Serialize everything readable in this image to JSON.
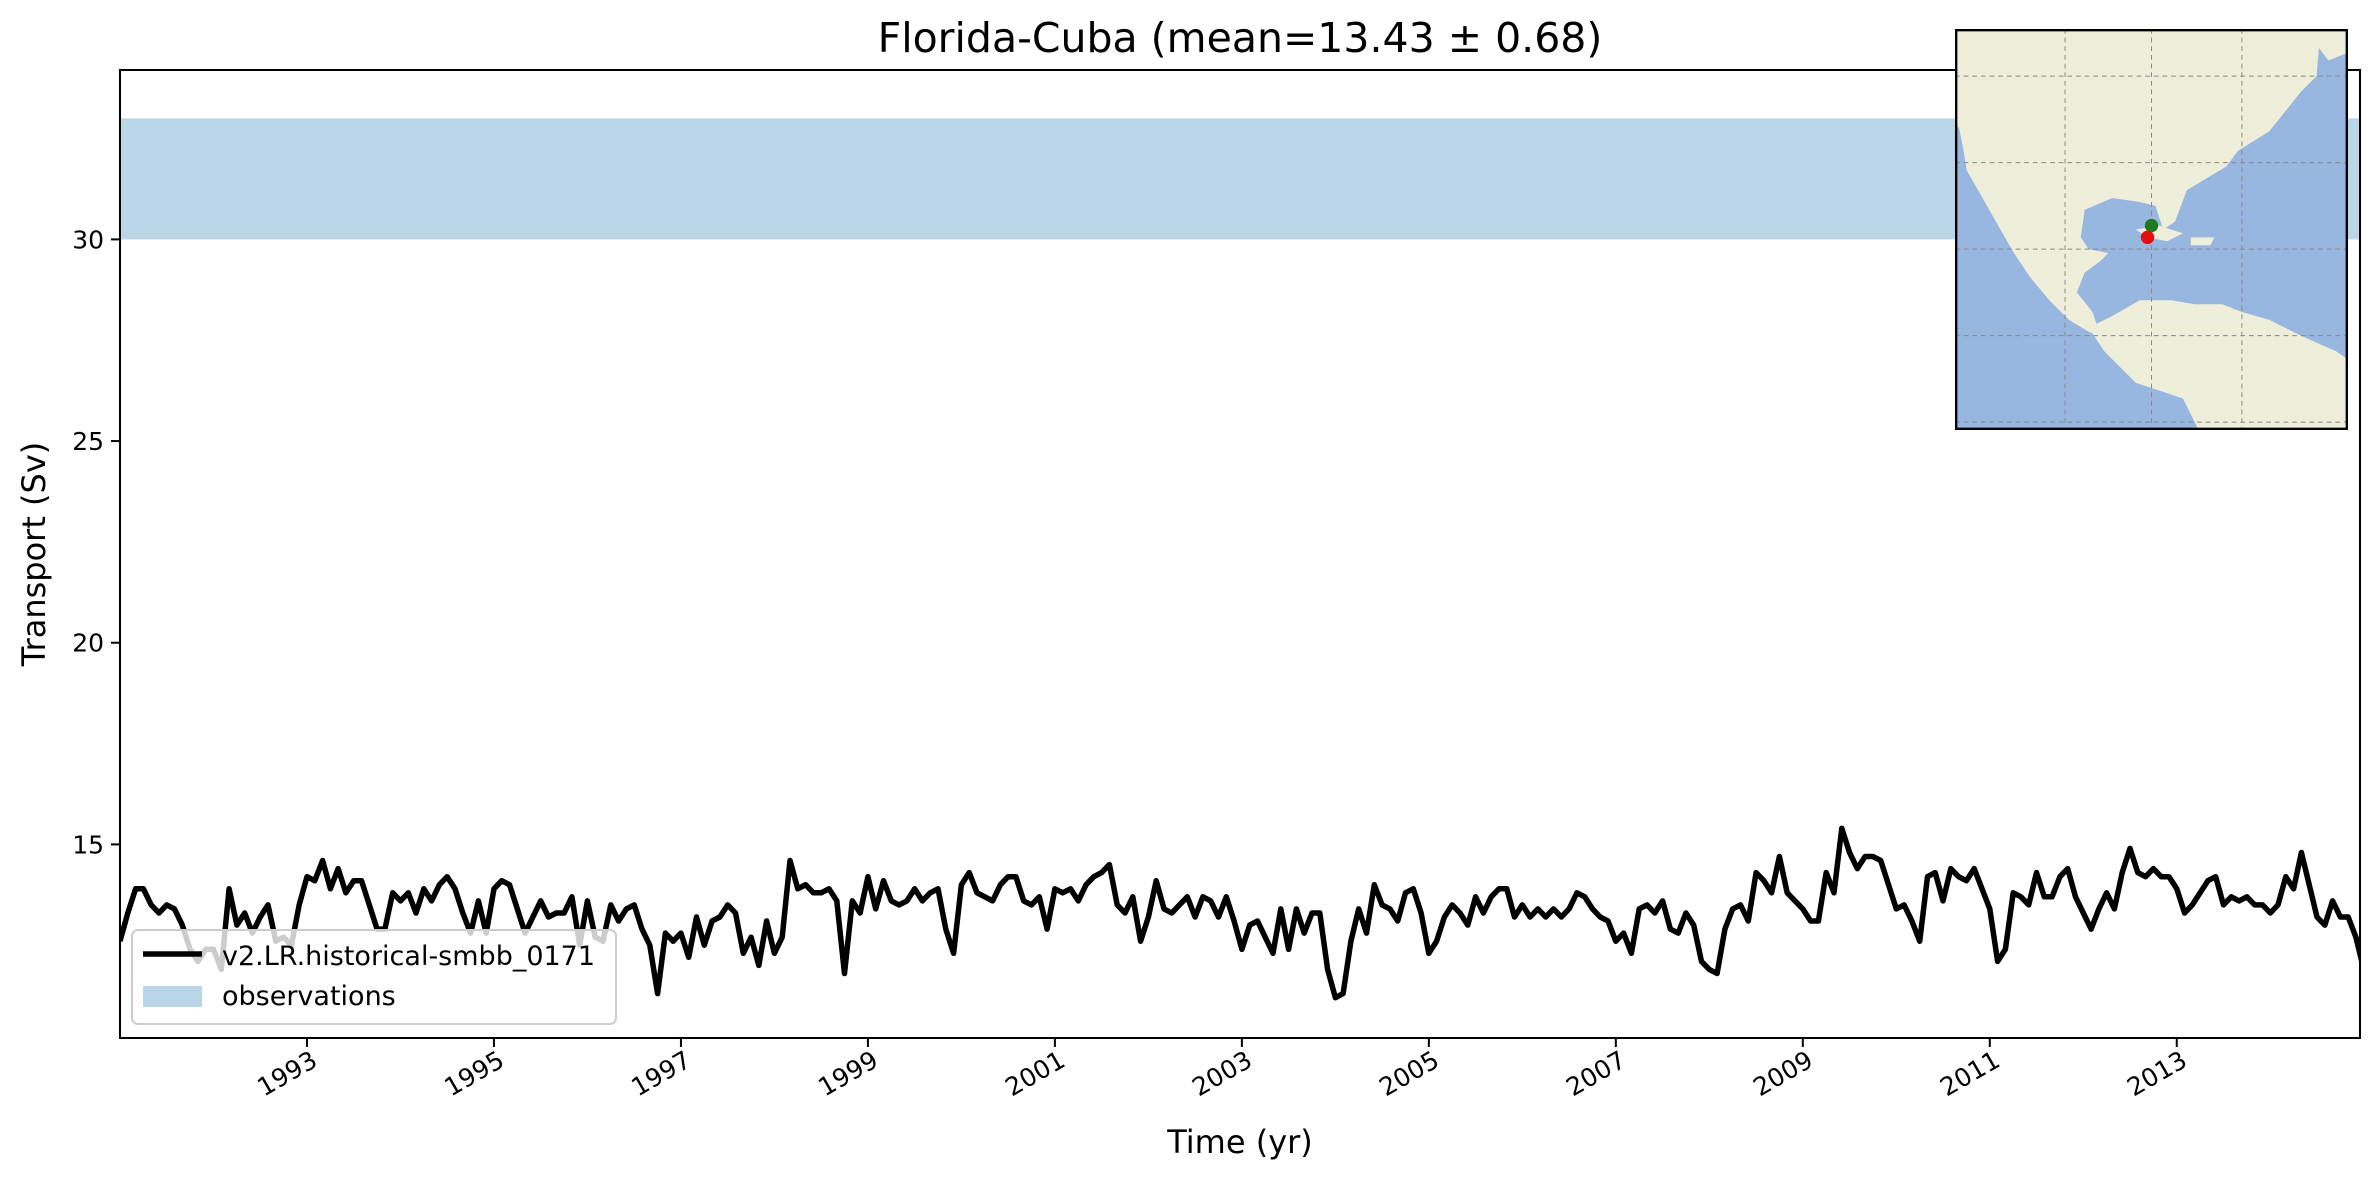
{
  "chart_data": {
    "type": "line",
    "title": "Florida-Cuba (mean=13.43 ± 0.68)",
    "xlabel": "Time (yr)",
    "ylabel": "Transport (Sv)",
    "xlim": [
      1991.0,
      2014.96
    ],
    "ylim": [
      10.2,
      34.2
    ],
    "x_ticks": [
      "1993",
      "1995",
      "1997",
      "1999",
      "2001",
      "2003",
      "2005",
      "2007",
      "2009",
      "2011",
      "2013"
    ],
    "y_ticks": [
      "15",
      "20",
      "25",
      "30"
    ],
    "grid": false,
    "legend_position": "lower-left",
    "series": [
      {
        "name": "v2.LR.historical-smbb_0171",
        "color": "#000000",
        "start": "1991-01",
        "frequency": "monthly",
        "values": [
          12.6,
          13.3,
          13.9,
          13.9,
          13.5,
          13.3,
          13.5,
          13.4,
          13.0,
          12.4,
          12.1,
          12.4,
          12.4,
          11.9,
          13.9,
          13.0,
          13.3,
          12.8,
          13.2,
          13.5,
          12.6,
          12.7,
          12.5,
          13.5,
          14.2,
          14.1,
          14.6,
          13.9,
          14.4,
          13.8,
          14.1,
          14.1,
          13.5,
          12.9,
          12.9,
          13.8,
          13.6,
          13.8,
          13.3,
          13.9,
          13.6,
          14.0,
          14.2,
          13.9,
          13.3,
          12.8,
          13.6,
          12.8,
          13.9,
          14.1,
          14.0,
          13.4,
          12.8,
          13.2,
          13.6,
          13.2,
          13.3,
          13.3,
          13.7,
          12.5,
          13.6,
          12.7,
          12.6,
          13.5,
          13.1,
          13.4,
          13.5,
          12.9,
          12.5,
          11.3,
          12.8,
          12.6,
          12.8,
          12.2,
          13.2,
          12.5,
          13.1,
          13.2,
          13.5,
          13.3,
          12.3,
          12.7,
          12.0,
          13.1,
          12.3,
          12.7,
          14.6,
          13.9,
          14.0,
          13.8,
          13.8,
          13.9,
          13.6,
          11.8,
          13.6,
          13.3,
          14.2,
          13.4,
          14.1,
          13.6,
          13.5,
          13.6,
          13.9,
          13.6,
          13.8,
          13.9,
          12.9,
          12.3,
          14.0,
          14.3,
          13.8,
          13.7,
          13.6,
          14.0,
          14.2,
          14.2,
          13.6,
          13.5,
          13.7,
          12.9,
          13.9,
          13.8,
          13.9,
          13.6,
          14.0,
          14.2,
          14.3,
          14.5,
          13.5,
          13.3,
          13.7,
          12.6,
          13.2,
          14.1,
          13.4,
          13.3,
          13.5,
          13.7,
          13.2,
          13.7,
          13.6,
          13.2,
          13.7,
          13.1,
          12.4,
          13.0,
          13.1,
          12.7,
          12.3,
          13.4,
          12.4,
          13.4,
          12.8,
          13.3,
          13.3,
          11.9,
          11.2,
          11.3,
          12.6,
          13.4,
          12.8,
          14.0,
          13.5,
          13.4,
          13.1,
          13.8,
          13.9,
          13.3,
          12.3,
          12.6,
          13.2,
          13.5,
          13.3,
          13.0,
          13.7,
          13.3,
          13.7,
          13.9,
          13.9,
          13.2,
          13.5,
          13.2,
          13.4,
          13.2,
          13.4,
          13.2,
          13.4,
          13.8,
          13.7,
          13.4,
          13.2,
          13.1,
          12.6,
          12.8,
          12.3,
          13.4,
          13.5,
          13.3,
          13.6,
          12.9,
          12.8,
          13.3,
          13.0,
          12.1,
          11.9,
          11.8,
          12.9,
          13.4,
          13.5,
          13.1,
          14.3,
          14.1,
          13.8,
          14.7,
          13.8,
          13.6,
          13.4,
          13.1,
          13.1,
          14.3,
          13.8,
          15.4,
          14.8,
          14.4,
          14.7,
          14.7,
          14.6,
          14.0,
          13.4,
          13.5,
          13.1,
          12.6,
          14.2,
          14.3,
          13.6,
          14.4,
          14.2,
          14.1,
          14.4,
          13.9,
          13.4,
          12.1,
          12.4,
          13.8,
          13.7,
          13.5,
          14.3,
          13.7,
          13.7,
          14.2,
          14.4,
          13.7,
          13.3,
          12.9,
          13.4,
          13.8,
          13.4,
          14.3,
          14.9,
          14.3,
          14.2,
          14.4,
          14.2,
          14.2,
          13.9,
          13.3,
          13.5,
          13.8,
          14.1,
          14.2,
          13.5,
          13.7,
          13.6,
          13.7,
          13.5,
          13.5,
          13.3,
          13.5,
          14.2,
          13.9,
          14.8,
          14.0,
          13.2,
          13.0,
          13.6,
          13.2,
          13.2,
          12.7,
          11.9,
          12.2,
          12.2
        ]
      },
      {
        "name": "observations",
        "type": "band",
        "color": "#b9d5e7",
        "y_range": [
          30,
          33
        ]
      }
    ],
    "inset_map": {
      "land_color": "#efeedb",
      "ocean_color": "#97b6e0",
      "markers": [
        {
          "color": "#1f7a1f"
        },
        {
          "color": "#e01010"
        }
      ]
    }
  }
}
